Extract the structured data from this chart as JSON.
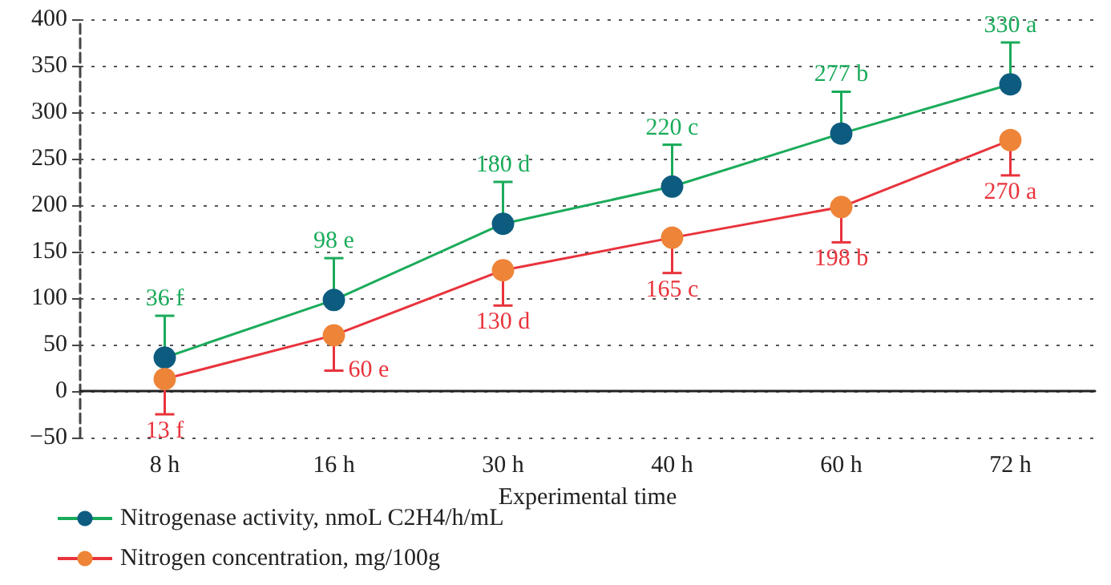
{
  "chart_data": {
    "type": "line",
    "xlabel": "Experimental time",
    "categories": [
      "8 h",
      "16 h",
      "30 h",
      "40 h",
      "60 h",
      "72 h"
    ],
    "series": [
      {
        "name": "Nitrogenase activity, nmoL C2H4/h/mL",
        "color": "#1aab5a",
        "colors": [
          "#0d5c80",
          "#0d5c80",
          "#0d5c80",
          "#0d5c80",
          "#0d5c80",
          "#0d5c80"
        ],
        "values": [
          36,
          98,
          180,
          220,
          277,
          330
        ],
        "errors": [
          [
            36,
            81
          ],
          [
            98,
            143
          ],
          [
            180,
            225
          ],
          [
            220,
            265
          ],
          [
            277,
            322
          ],
          [
            330,
            375
          ]
        ],
        "value_labels": [
          "36 f",
          "98 e",
          "180 d",
          "220 c",
          "277 b",
          "330 a"
        ]
      },
      {
        "name": "Nitrogen concentration, mg/100g",
        "color": "#e8333c",
        "colors": [
          "#ee8438",
          "#ee8438",
          "#ee8438",
          "#ee8438",
          "#ee8438",
          "#ee8438"
        ],
        "values": [
          13,
          60,
          130,
          165,
          198,
          270
        ],
        "errors": [
          [
            -25,
            13
          ],
          [
            22,
            60
          ],
          [
            92,
            130
          ],
          [
            127,
            165
          ],
          [
            160,
            198
          ],
          [
            232,
            270
          ]
        ],
        "value_labels": [
          "13 f",
          "60 e",
          "130 d",
          "165 c",
          "198 b",
          "270 a"
        ]
      }
    ],
    "ylim": [
      -50,
      400
    ],
    "yticks": [
      -50,
      0,
      50,
      100,
      150,
      200,
      250,
      300,
      350,
      400
    ],
    "grid": "y",
    "legend": "bottom left",
    "marker": "circle",
    "line_style": "solid"
  }
}
